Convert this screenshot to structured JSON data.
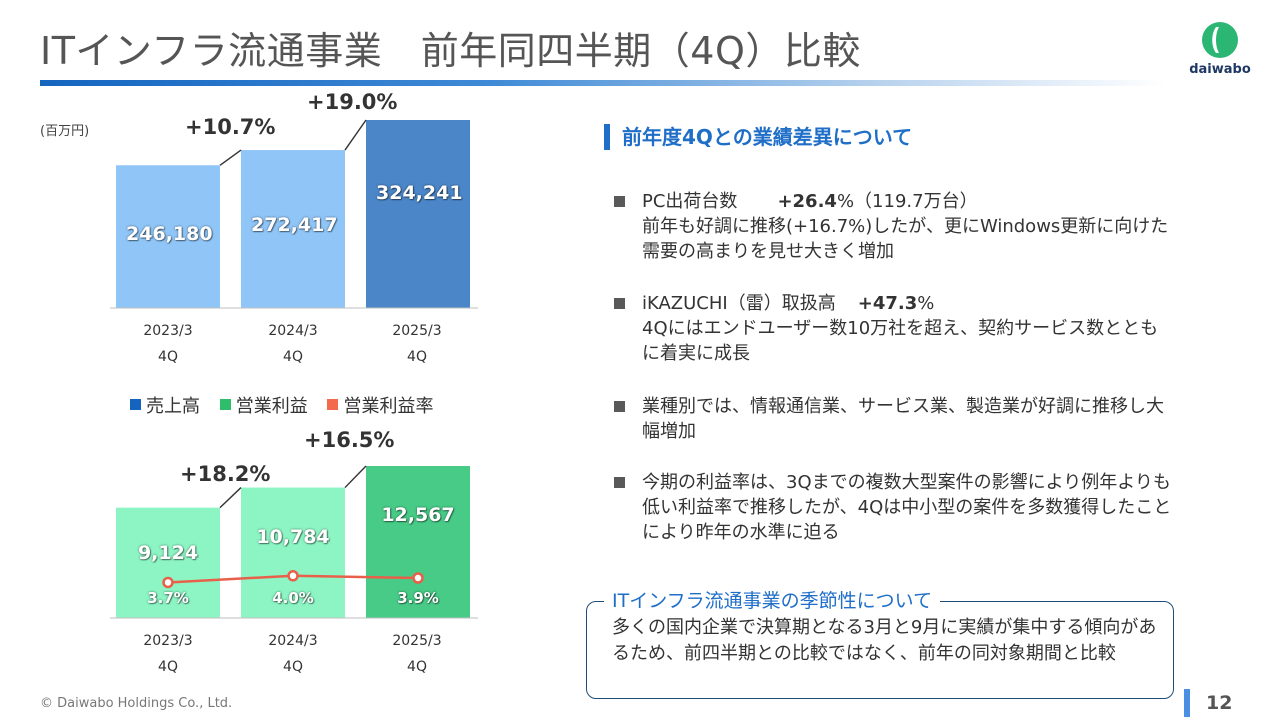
{
  "title": "ITインフラ流通事業　前年同四半期（4Q）比較",
  "logo": {
    "text": "daiwabo"
  },
  "unit_label": "(百万円)",
  "sales_chart": {
    "growth": [
      {
        "label": "+10.7%"
      },
      {
        "label": "+19.0%"
      }
    ]
  },
  "profit_chart": {
    "growth": [
      {
        "label": "+18.2%"
      },
      {
        "label": "+16.5%"
      }
    ]
  },
  "legend": {
    "items": [
      {
        "label": "売上高",
        "color": "#1565c0"
      },
      {
        "label": "営業利益",
        "color": "#2ebd6b"
      },
      {
        "label": "営業利益率",
        "color": "#f26b4f"
      }
    ]
  },
  "chart_data": [
    {
      "type": "bar",
      "categories": [
        "2023/3 4Q",
        "2024/3 4Q",
        "2025/3 4Q"
      ],
      "series": [
        {
          "name": "売上高",
          "values": [
            246180,
            272417,
            324241
          ]
        }
      ],
      "value_labels": [
        "246,180",
        "272,417",
        "324,241"
      ],
      "colors": [
        "#8fc5f7",
        "#8fc5f7",
        "#4a86c8"
      ],
      "ylim": [
        0,
        350000
      ],
      "grid": false
    },
    {
      "type": "bar",
      "categories": [
        "2023/3 4Q",
        "2024/3 4Q",
        "2025/3 4Q"
      ],
      "series": [
        {
          "name": "営業利益",
          "values": [
            9124,
            10784,
            12567
          ]
        },
        {
          "name": "営業利益率",
          "values": [
            3.7,
            4.0,
            3.9
          ],
          "type": "line"
        }
      ],
      "value_labels": [
        "9,124",
        "10,784",
        "12,567"
      ],
      "rate_labels": [
        "3.7%",
        "4.0%",
        "3.9%"
      ],
      "colors": [
        "#8cf5c3",
        "#8cf5c3",
        "#47cb87"
      ],
      "ylim": [
        0,
        14000
      ],
      "rate_ylim": [
        0,
        5.5
      ],
      "grid": false
    }
  ],
  "xticks": [
    {
      "year": "2023/3",
      "q": "4Q"
    },
    {
      "year": "2024/3",
      "q": "4Q"
    },
    {
      "year": "2025/3",
      "q": "4Q"
    }
  ],
  "section_heading": "前年度4Qとの業績差異について",
  "bullets": [
    {
      "line1_label": "PC出荷台数",
      "line1_value": "+26.4",
      "line1_suffix": "%（119.7万台）",
      "rest": "前年も好調に推移(+16.7%)したが、更にWindows更新に向けた需要の高まりを見せ大きく増加"
    },
    {
      "line1_label": "iKAZUCHI（雷）取扱高",
      "line1_value": "+47.3",
      "line1_suffix": "%",
      "rest": "4Qにはエンドユーザー数10万社を超え、契約サービス数とともに着実に成長"
    },
    {
      "text": "業種別では、情報通信業、サービス業、製造業が好調に推移し大幅増加"
    },
    {
      "text": "今期の利益率は、3Qまでの複数大型案件の影響により例年よりも低い利益率で推移したが、4Qは中小型の案件を多数獲得したことにより昨年の水準に迫る"
    }
  ],
  "seasonality": {
    "title": "ITインフラ流通事業の季節性について",
    "body": "多くの国内企業で決算期となる3月と9月に実績が集中する傾向があるため、前四半期との比較ではなく、前年の同対象期間と比較"
  },
  "footer": {
    "copyright": "© Daiwabo Holdings Co., Ltd.",
    "page": "12"
  }
}
